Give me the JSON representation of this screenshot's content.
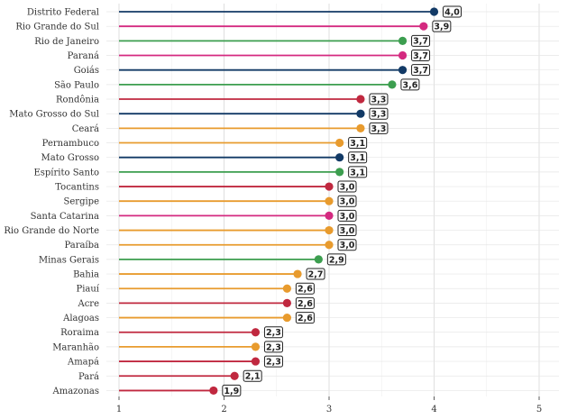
{
  "chart_data": {
    "type": "lollipop",
    "title": "",
    "xlabel": "",
    "ylabel": "",
    "xlim": [
      0.8,
      5.1
    ],
    "xticks": [
      1,
      2,
      3,
      4,
      5
    ],
    "xtick_labels": [
      "1",
      "2",
      "3",
      "4",
      "5"
    ],
    "grid": true,
    "legend": "none",
    "colors": {
      "red": "#c0283f",
      "orange": "#e89b2e",
      "green": "#3c9e4f",
      "navy": "#123a66",
      "magenta": "#d42a80"
    },
    "points": [
      {
        "category": "Distrito Federal",
        "value": 4.0,
        "label": "4,0",
        "color": "navy"
      },
      {
        "category": "Rio Grande do Sul",
        "value": 3.9,
        "label": "3,9",
        "color": "magenta"
      },
      {
        "category": "Rio de Janeiro",
        "value": 3.7,
        "label": "3,7",
        "color": "green"
      },
      {
        "category": "Paraná",
        "value": 3.7,
        "label": "3,7",
        "color": "magenta"
      },
      {
        "category": "Goiás",
        "value": 3.7,
        "label": "3,7",
        "color": "navy"
      },
      {
        "category": "São Paulo",
        "value": 3.6,
        "label": "3,6",
        "color": "green"
      },
      {
        "category": "Rondônia",
        "value": 3.3,
        "label": "3,3",
        "color": "red"
      },
      {
        "category": "Mato Grosso do Sul",
        "value": 3.3,
        "label": "3,3",
        "color": "navy"
      },
      {
        "category": "Ceará",
        "value": 3.3,
        "label": "3,3",
        "color": "orange"
      },
      {
        "category": "Pernambuco",
        "value": 3.1,
        "label": "3,1",
        "color": "orange"
      },
      {
        "category": "Mato Grosso",
        "value": 3.1,
        "label": "3,1",
        "color": "navy"
      },
      {
        "category": "Espírito Santo",
        "value": 3.1,
        "label": "3,1",
        "color": "green"
      },
      {
        "category": "Tocantins",
        "value": 3.0,
        "label": "3,0",
        "color": "red"
      },
      {
        "category": "Sergipe",
        "value": 3.0,
        "label": "3,0",
        "color": "orange"
      },
      {
        "category": "Santa Catarina",
        "value": 3.0,
        "label": "3,0",
        "color": "magenta"
      },
      {
        "category": "Rio Grande do Norte",
        "value": 3.0,
        "label": "3,0",
        "color": "orange"
      },
      {
        "category": "Paraíba",
        "value": 3.0,
        "label": "3,0",
        "color": "orange"
      },
      {
        "category": "Minas Gerais",
        "value": 2.9,
        "label": "2,9",
        "color": "green"
      },
      {
        "category": "Bahia",
        "value": 2.7,
        "label": "2,7",
        "color": "orange"
      },
      {
        "category": "Piauí",
        "value": 2.6,
        "label": "2,6",
        "color": "orange"
      },
      {
        "category": "Acre",
        "value": 2.6,
        "label": "2,6",
        "color": "red"
      },
      {
        "category": "Alagoas",
        "value": 2.6,
        "label": "2,6",
        "color": "orange"
      },
      {
        "category": "Roraima",
        "value": 2.3,
        "label": "2,3",
        "color": "red"
      },
      {
        "category": "Maranhão",
        "value": 2.3,
        "label": "2,3",
        "color": "orange"
      },
      {
        "category": "Amapá",
        "value": 2.3,
        "label": "2,3",
        "color": "red"
      },
      {
        "category": "Pará",
        "value": 2.1,
        "label": "2,1",
        "color": "red"
      },
      {
        "category": "Amazonas",
        "value": 1.9,
        "label": "1,9",
        "color": "red"
      }
    ]
  }
}
